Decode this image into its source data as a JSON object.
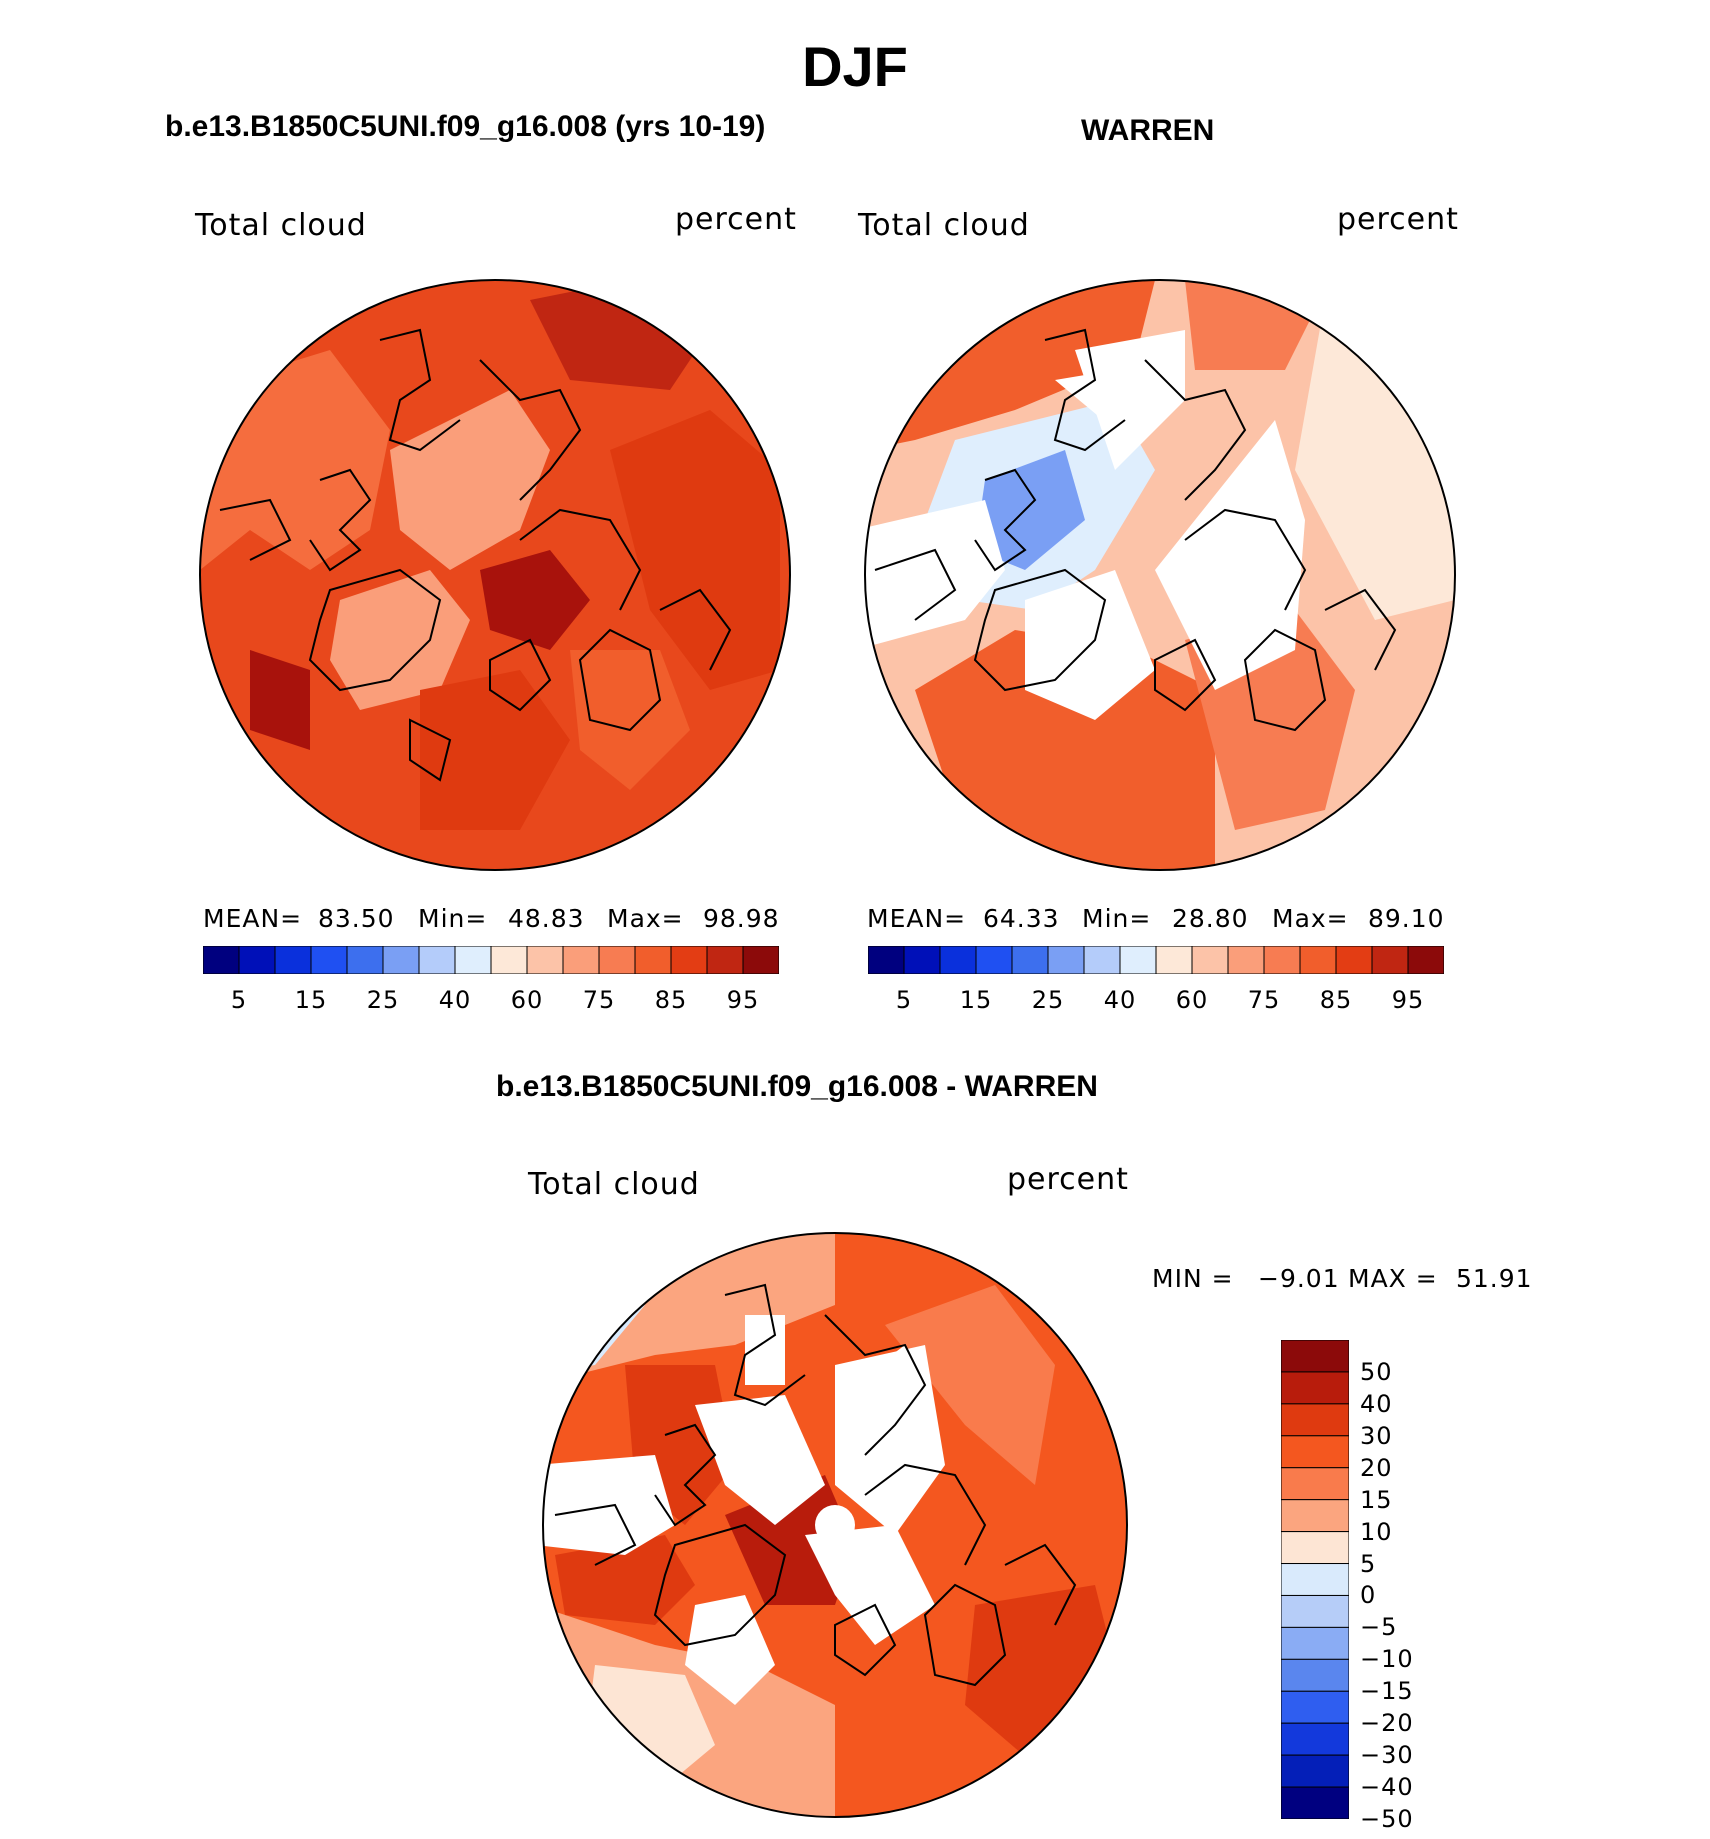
{
  "title": "DJF",
  "panels": [
    {
      "case_title": "b.e13.B1850C5UNI.f09_g16.008 (yrs 10-19)",
      "variable": "Total cloud",
      "units": "percent",
      "stats": {
        "mean_label": "MEAN=",
        "mean": "83.50",
        "min_label": "Min=",
        "min": "48.83",
        "max_label": "Max=",
        "max": "98.98"
      }
    },
    {
      "case_title": "WARREN",
      "variable": "Total cloud",
      "units": "percent",
      "stats": {
        "mean_label": "MEAN=",
        "mean": "64.33",
        "min_label": "Min=",
        "min": "28.80",
        "max_label": "Max=",
        "max": "89.10"
      }
    }
  ],
  "diff_panel": {
    "case_title": "b.e13.B1850C5UNI.f09_g16.008 - WARREN",
    "variable": "Total cloud",
    "units": "percent",
    "min_label": "MIN =",
    "min": "−9.01",
    "max_label": "MAX =",
    "max": "51.91"
  },
  "abs_colorbar": {
    "colors": [
      "#00007f",
      "#0010b8",
      "#0a30dc",
      "#1f50f2",
      "#3d6fee",
      "#7a9ff4",
      "#b4ccfa",
      "#dfeefd",
      "#fde8d8",
      "#fcc3a8",
      "#fa9e7a",
      "#f77c52",
      "#f15e2c",
      "#e33d14",
      "#c02612",
      "#8c0a0a"
    ],
    "labels": [
      "5",
      "15",
      "25",
      "40",
      "60",
      "75",
      "85",
      "95"
    ]
  },
  "diff_colorbar": {
    "colors_top_to_bottom": [
      "#8c0a0a",
      "#b81c0c",
      "#df3a10",
      "#f4571f",
      "#f97b4c",
      "#fba57f",
      "#fde5d4",
      "#d9eafc",
      "#b6cdf8",
      "#8aacf4",
      "#5a86ee",
      "#2f5ef0",
      "#1339dc",
      "#041fb8",
      "#000080"
    ],
    "labels": [
      "50",
      "40",
      "30",
      "20",
      "15",
      "10",
      "5",
      "0",
      "−5",
      "−10",
      "−15",
      "−20",
      "−30",
      "−40",
      "−50"
    ]
  },
  "chart_data": [
    {
      "type": "heatmap",
      "title": "b.e13.B1850C5UNI.f09_g16.008 (yrs 10-19)",
      "variable": "Total cloud",
      "units": "percent",
      "mean": 83.5,
      "min": 48.83,
      "max": 98.98,
      "contour_levels": [
        5,
        10,
        15,
        20,
        25,
        30,
        40,
        50,
        60,
        65,
        75,
        80,
        85,
        90,
        95
      ]
    },
    {
      "type": "heatmap",
      "title": "WARREN",
      "variable": "Total cloud",
      "units": "percent",
      "mean": 64.33,
      "min": 28.8,
      "max": 89.1,
      "contour_levels": [
        5,
        10,
        15,
        20,
        25,
        30,
        40,
        50,
        60,
        65,
        75,
        80,
        85,
        90,
        95
      ]
    },
    {
      "type": "heatmap",
      "title": "b.e13.B1850C5UNI.f09_g16.008 - WARREN",
      "variable": "Total cloud",
      "units": "percent",
      "min": -9.01,
      "max": 51.91,
      "contour_levels": [
        -50,
        -40,
        -30,
        -20,
        -15,
        -10,
        -5,
        0,
        5,
        10,
        15,
        20,
        30,
        40,
        50
      ]
    }
  ]
}
